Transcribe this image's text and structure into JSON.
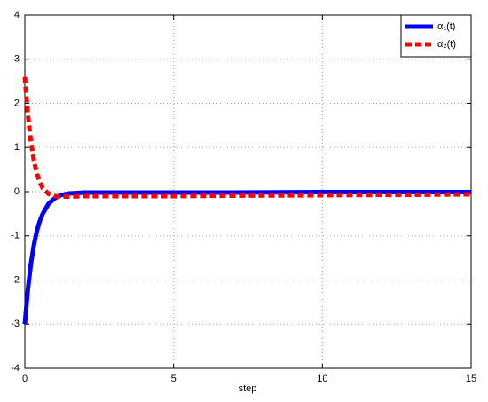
{
  "chart_data": {
    "type": "line",
    "xlabel": "step",
    "x": [
      0,
      0.1,
      0.2,
      0.3,
      0.4,
      0.5,
      0.6,
      0.8,
      1,
      1.2,
      1.5,
      2,
      3,
      5,
      7,
      10,
      13,
      15
    ],
    "series": [
      {
        "name": "α₁(t)",
        "color": "#0000ff",
        "dash": false,
        "values": [
          -3,
          -2.22,
          -1.65,
          -1.22,
          -0.9,
          -0.67,
          -0.5,
          -0.27,
          -0.15,
          -0.08,
          -0.04,
          -0.02,
          -0.02,
          -0.02,
          -0.02,
          -0.01,
          -0.01,
          -0.01
        ]
      },
      {
        "name": "α₂(t)",
        "color": "#ff0000",
        "dash": true,
        "values": [
          2.6,
          1.75,
          1.15,
          0.72,
          0.42,
          0.22,
          0.08,
          -0.05,
          -0.1,
          -0.11,
          -0.11,
          -0.1,
          -0.1,
          -0.1,
          -0.09,
          -0.08,
          -0.07,
          -0.06
        ]
      }
    ],
    "xlim": [
      0,
      15
    ],
    "ylim": [
      -4,
      4
    ],
    "xticks": [
      0,
      5,
      10,
      15
    ],
    "yticks": [
      -4,
      -3,
      -2,
      -1,
      0,
      1,
      2,
      3,
      4
    ],
    "grid": true,
    "legend": "top-right"
  }
}
